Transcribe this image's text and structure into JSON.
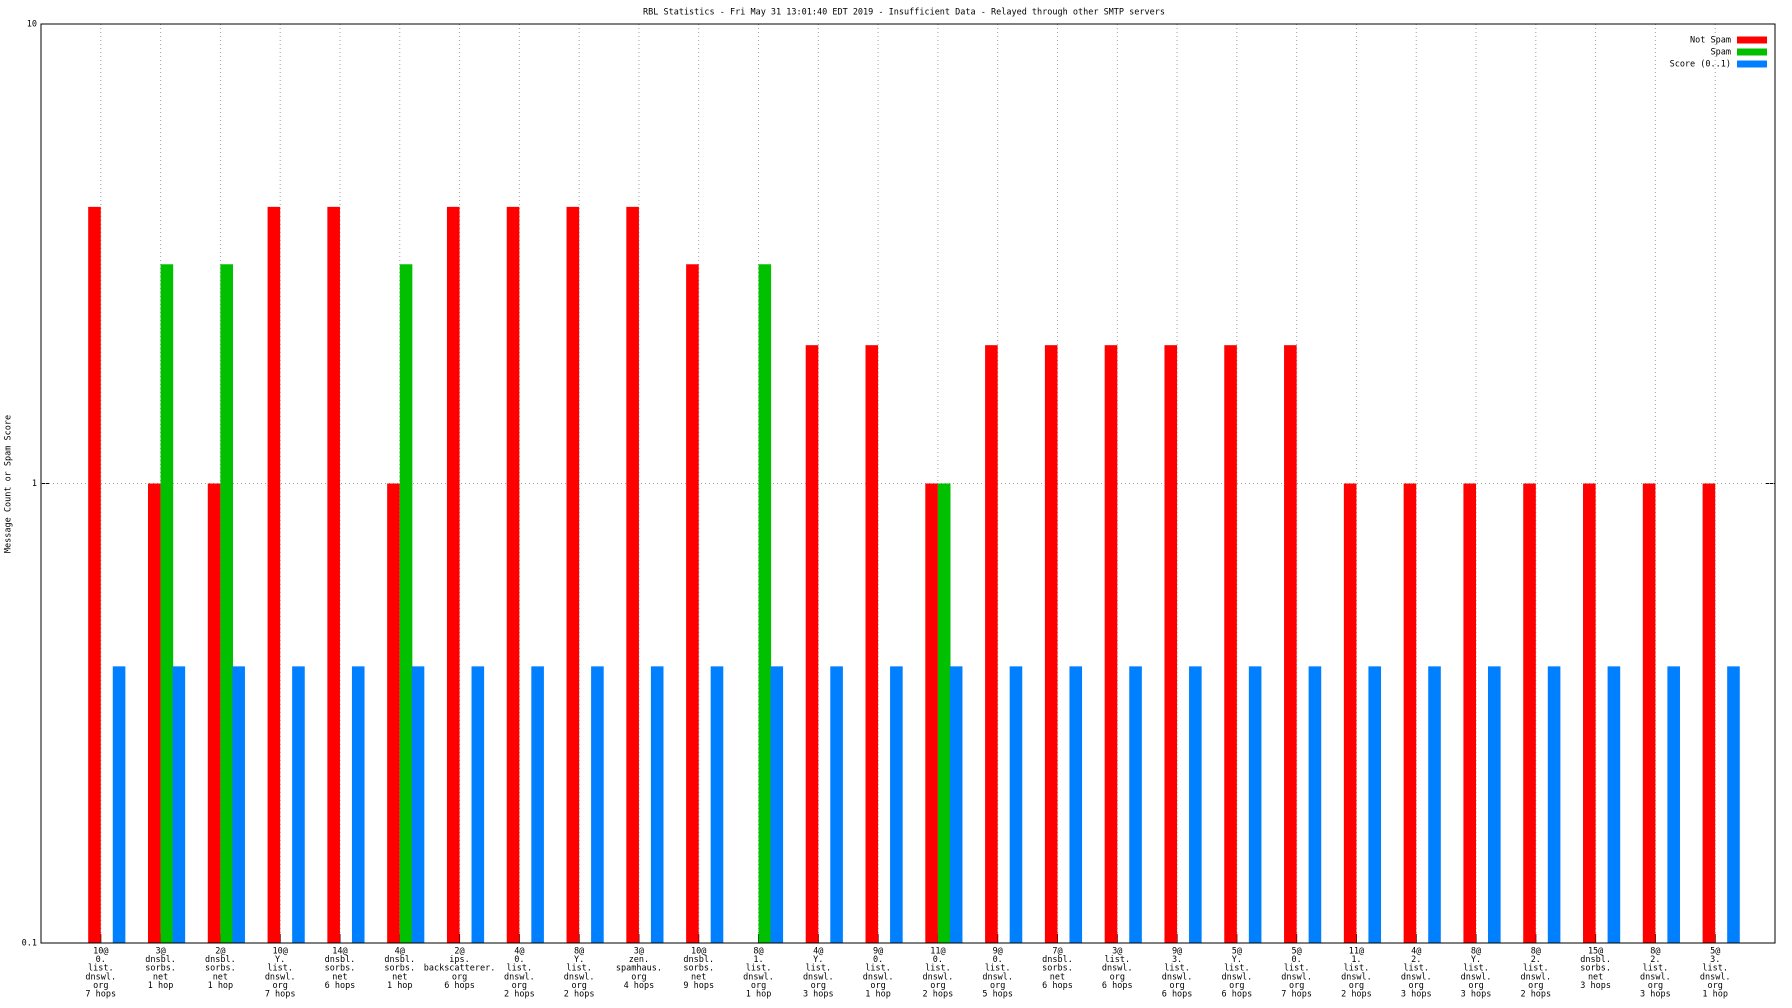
{
  "chart_data": {
    "type": "bar",
    "title": "RBL Statistics - Fri May 31 13:01:40 EDT 2019 - Insufficient Data - Relayed through other SMTP servers",
    "y_label": "Message Count or Spam Score",
    "log_scale": true,
    "grid": true,
    "legend_position": "top-right",
    "ylim": [
      0.1,
      10
    ],
    "yticks": [
      0.1,
      1,
      10
    ],
    "categories": [
      [
        "10@",
        "0.",
        "list.",
        "dnswl.",
        "org",
        "7 hops"
      ],
      [
        "3@",
        "dnsbl.",
        "sorbs.",
        "net",
        "1 hop"
      ],
      [
        "2@",
        "dnsbl.",
        "sorbs.",
        "net",
        "1 hop"
      ],
      [
        "10@",
        "Y.",
        "list.",
        "dnswl.",
        "org",
        "7 hops"
      ],
      [
        "14@",
        "dnsbl.",
        "sorbs.",
        "net",
        "6 hops"
      ],
      [
        "4@",
        "dnsbl.",
        "sorbs.",
        "net",
        "1 hop"
      ],
      [
        "2@",
        "ips.",
        "backscatterer.",
        "org",
        "6 hops"
      ],
      [
        "4@",
        "0.",
        "list.",
        "dnswl.",
        "org",
        "2 hops"
      ],
      [
        "8@",
        "Y.",
        "list.",
        "dnswl.",
        "org",
        "2 hops"
      ],
      [
        "3@",
        "zen.",
        "spamhaus.",
        "org",
        "4 hops"
      ],
      [
        "10@",
        "dnsbl.",
        "sorbs.",
        "net",
        "9 hops"
      ],
      [
        "8@",
        "1.",
        "list.",
        "dnswl.",
        "org",
        "1 hop"
      ],
      [
        "4@",
        "Y.",
        "list.",
        "dnswl.",
        "org",
        "3 hops"
      ],
      [
        "9@",
        "0.",
        "list.",
        "dnswl.",
        "org",
        "1 hop"
      ],
      [
        "11@",
        "0.",
        "list.",
        "dnswl.",
        "org",
        "2 hops"
      ],
      [
        "9@",
        "0.",
        "list.",
        "dnswl.",
        "org",
        "5 hops"
      ],
      [
        "7@",
        "dnsbl.",
        "sorbs.",
        "net",
        "6 hops"
      ],
      [
        "3@",
        "list.",
        "dnswl.",
        "org",
        "6 hops"
      ],
      [
        "9@",
        "3.",
        "list.",
        "dnswl.",
        "org",
        "6 hops"
      ],
      [
        "5@",
        "Y.",
        "list.",
        "dnswl.",
        "org",
        "6 hops"
      ],
      [
        "5@",
        "0.",
        "list.",
        "dnswl.",
        "org",
        "7 hops"
      ],
      [
        "11@",
        "1.",
        "list.",
        "dnswl.",
        "org",
        "2 hops"
      ],
      [
        "4@",
        "2.",
        "list.",
        "dnswl.",
        "org",
        "3 hops"
      ],
      [
        "8@",
        "Y.",
        "list.",
        "dnswl.",
        "org",
        "3 hops"
      ],
      [
        "8@",
        "2.",
        "list.",
        "dnswl.",
        "org",
        "2 hops"
      ],
      [
        "15@",
        "dnsbl.",
        "sorbs.",
        "net",
        "3 hops"
      ],
      [
        "8@",
        "2.",
        "list.",
        "dnswl.",
        "org",
        "3 hops"
      ],
      [
        "5@",
        "3.",
        "list.",
        "dnswl.",
        "org",
        "1 hop"
      ]
    ],
    "series": [
      {
        "name": "Not Spam",
        "color": "#ff0000",
        "values": [
          4,
          1,
          1,
          4,
          4,
          1,
          4,
          4,
          4,
          4,
          3,
          null,
          2,
          2,
          1,
          2,
          2,
          2,
          2,
          2,
          2,
          1,
          1,
          1,
          1,
          1,
          1,
          1
        ]
      },
      {
        "name": "Spam",
        "color": "#00c000",
        "values": [
          null,
          3,
          3,
          null,
          null,
          3,
          null,
          null,
          null,
          null,
          null,
          3,
          null,
          null,
          1,
          null,
          null,
          null,
          null,
          null,
          null,
          null,
          null,
          null,
          null,
          null,
          null,
          null
        ]
      },
      {
        "name": "Score (0..1)",
        "color": "#0080ff",
        "values": [
          0.4,
          0.4,
          0.4,
          0.4,
          0.4,
          0.4,
          0.4,
          0.4,
          0.4,
          0.4,
          0.4,
          0.4,
          0.4,
          0.4,
          0.4,
          0.4,
          0.4,
          0.4,
          0.4,
          0.4,
          0.4,
          0.4,
          0.4,
          0.4,
          0.4,
          0.4,
          0.4,
          0.4
        ]
      }
    ]
  }
}
